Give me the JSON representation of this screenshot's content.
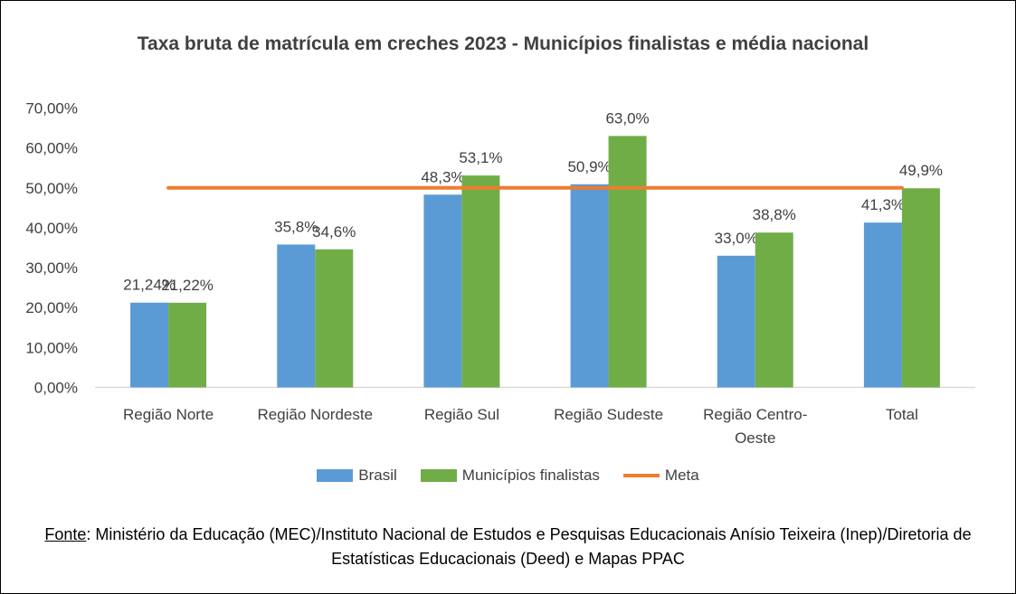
{
  "chart_data": {
    "type": "bar",
    "title": "Taxa bruta de matrícula em creches 2023 - Municípios finalistas e média nacional",
    "categories": [
      "Região Norte",
      "Região Nordeste",
      "Região Sul",
      "Região Sudeste",
      "Região Centro-Oeste",
      "Total"
    ],
    "series": [
      {
        "name": "Brasil",
        "values": [
          21.24,
          35.8,
          48.3,
          50.9,
          33.0,
          41.3
        ],
        "labels": [
          "21,24%",
          "35,8%",
          "48,3%",
          "50,9%",
          "33,0%",
          "41,3%"
        ],
        "color": "#5b9bd5"
      },
      {
        "name": "Municípios finalistas",
        "values": [
          21.22,
          34.6,
          53.1,
          63.0,
          38.8,
          49.9
        ],
        "labels": [
          "21,22%",
          "34,6%",
          "53,1%",
          "63,0%",
          "38,8%",
          "49,9%"
        ],
        "color": "#70ad47"
      }
    ],
    "meta": {
      "name": "Meta",
      "value": 50.0,
      "color": "#ed7d31"
    },
    "yticks": [
      "0,00%",
      "10,00%",
      "20,00%",
      "30,00%",
      "40,00%",
      "50,00%",
      "60,00%",
      "70,00%"
    ],
    "ylim": [
      0,
      70
    ],
    "grid": false,
    "legend": "bottom"
  },
  "source": {
    "label": "Fonte",
    "text": ": Ministério da Educação (MEC)/Instituto Nacional de Estudos e Pesquisas Educacionais Anísio Teixeira (Inep)/Diretoria de Estatísticas Educacionais (Deed) e Mapas PPAC"
  }
}
